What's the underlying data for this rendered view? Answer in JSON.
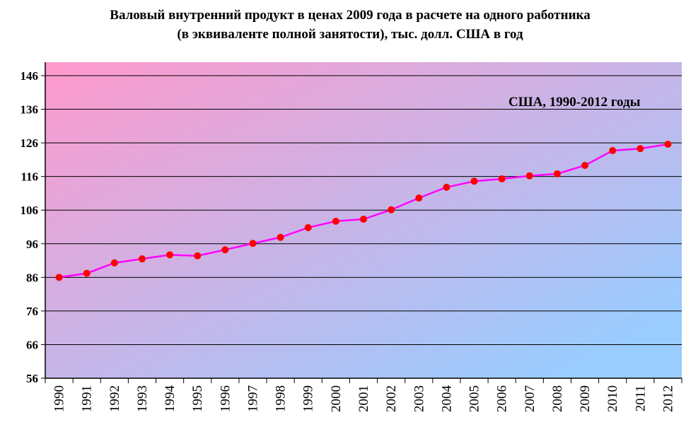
{
  "chart_data": {
    "type": "line",
    "title": "Валовый внутренний продукт в ценах 2009 года  в расчете на одного работника",
    "subtitle": "(в эквиваленте полной занятости), тыс. долл. США в год",
    "annotation": "США, 1990-2012 годы",
    "xlabel": "",
    "ylabel": "",
    "ylim": [
      56,
      146
    ],
    "yticks": [
      56,
      66,
      76,
      86,
      96,
      106,
      116,
      126,
      136,
      146
    ],
    "x": [
      "1990",
      "1991",
      "1992",
      "1993",
      "1994",
      "1995",
      "1996",
      "1997",
      "1998",
      "1999",
      "2000",
      "2001",
      "2002",
      "2003",
      "2004",
      "2005",
      "2006",
      "2007",
      "2008",
      "2009",
      "2010",
      "2011",
      "2012"
    ],
    "series": [
      {
        "name": "",
        "values": [
          86.0,
          87.2,
          90.3,
          91.5,
          92.7,
          92.4,
          94.2,
          96.1,
          97.9,
          100.8,
          102.7,
          103.3,
          106.1,
          109.6,
          112.8,
          114.6,
          115.3,
          116.2,
          116.8,
          119.3,
          123.7,
          124.3,
          125.6
        ]
      }
    ],
    "grid": true,
    "legend": "none",
    "colors": {
      "line": "#ff00ff",
      "marker": "#ff0000",
      "gradient_start": "#ff99cc",
      "gradient_end": "#99ccff",
      "gridline": "#000000"
    }
  }
}
